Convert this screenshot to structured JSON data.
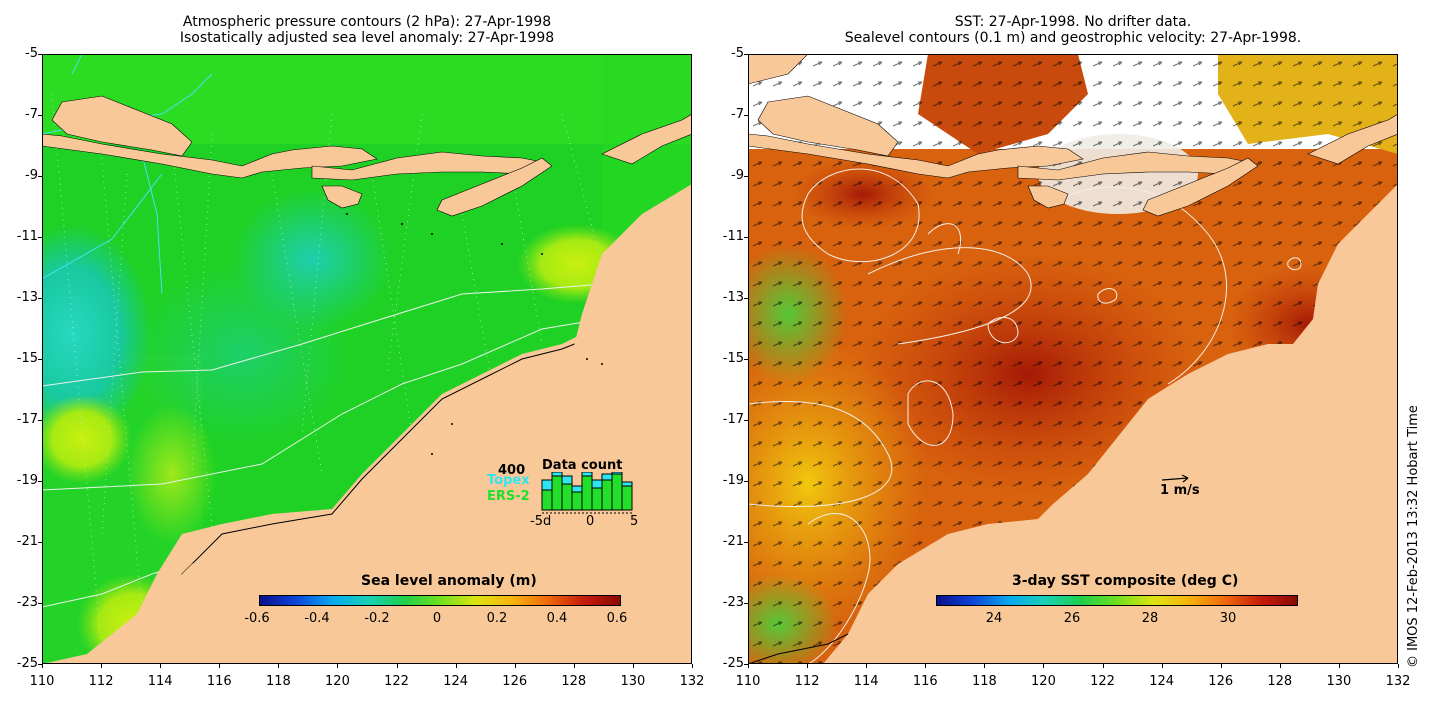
{
  "left_panel": {
    "title_line1": "Atmospheric pressure contours (2 hPa): 27-Apr-1998",
    "title_line2": "Isostatically adjusted sea level anomaly: 27-Apr-1998",
    "colorbar": {
      "label": "Sea level anomaly (m)",
      "ticks": [
        "-0.6",
        "-0.4",
        "-0.2",
        "0",
        "0.2",
        "0.4",
        "0.6"
      ]
    },
    "data_count": {
      "title": "Data count",
      "max_label": "400",
      "series": [
        "Topex",
        "ERS-2"
      ],
      "topex_color": "#2ee6f0",
      "ers2_color": "#22e02a",
      "x_ticks": [
        "-5d",
        "0",
        "5"
      ]
    }
  },
  "right_panel": {
    "title_line1": "SST: 27-Apr-1998. No drifter data.",
    "title_line2": "Sealevel contours (0.1 m) and geostrophic velocity: 27-Apr-1998.",
    "colorbar": {
      "label": "3-day SST composite (deg C)",
      "ticks": [
        "24",
        "26",
        "28",
        "30"
      ]
    },
    "velocity_scale": "1 m/s"
  },
  "axes": {
    "y_ticks": [
      "-5",
      "-7",
      "-9",
      "-11",
      "-13",
      "-15",
      "-17",
      "-19",
      "-21",
      "-23",
      "-25"
    ],
    "x_ticks": [
      "110",
      "112",
      "114",
      "116",
      "118",
      "120",
      "122",
      "124",
      "126",
      "128",
      "130",
      "132"
    ]
  },
  "credit": "© IMOS 12-Feb-2013 13:32 Hobart Time",
  "colors": {
    "land": "#f9c898",
    "sla_green": "#1fd624",
    "sst_orange": "#d9620e"
  }
}
